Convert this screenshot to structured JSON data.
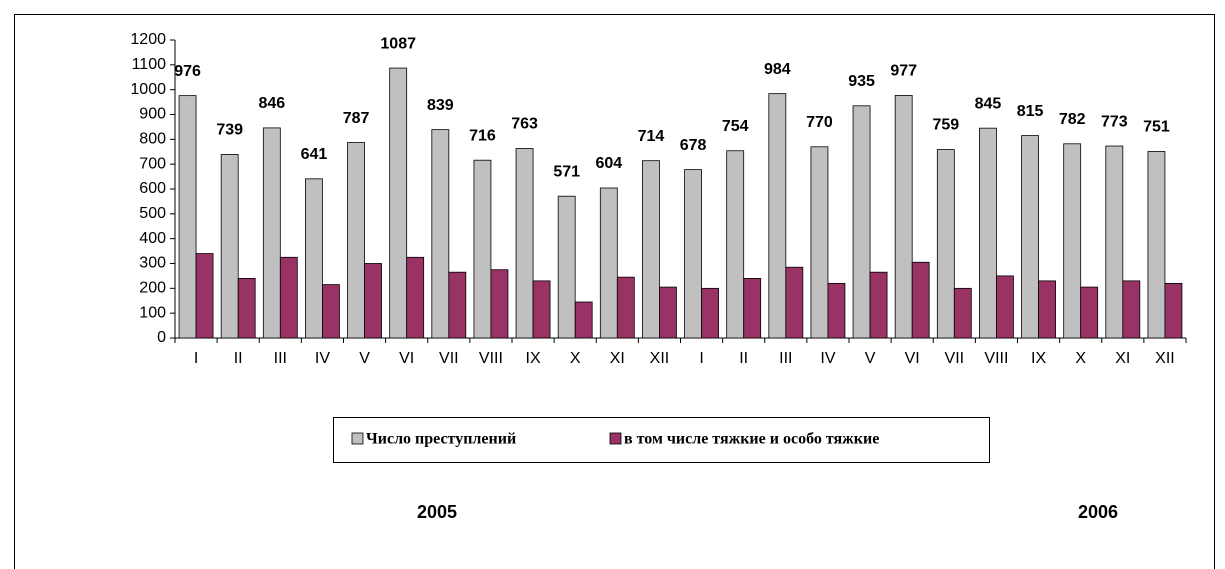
{
  "chart_data": {
    "type": "bar",
    "categories": [
      "I",
      "II",
      "III",
      "IV",
      "V",
      "VI",
      "VII",
      "VIII",
      "IX",
      "X",
      "XI",
      "XII",
      "I",
      "II",
      "III",
      "IV",
      "V",
      "VI",
      "VII",
      "VIII",
      "IX",
      "X",
      "XI",
      "XII"
    ],
    "series": [
      {
        "name": "Число преступлений",
        "color": "#c0c0c0",
        "values": [
          976,
          739,
          846,
          641,
          787,
          1087,
          839,
          716,
          763,
          571,
          604,
          714,
          678,
          754,
          984,
          770,
          935,
          977,
          759,
          845,
          815,
          782,
          773,
          751
        ]
      },
      {
        "name": "в том числе тяжкие и особо тяжкие",
        "color": "#993366",
        "values": [
          340,
          240,
          325,
          215,
          300,
          325,
          265,
          275,
          230,
          145,
          245,
          205,
          200,
          240,
          285,
          220,
          265,
          305,
          200,
          250,
          230,
          205,
          230,
          220
        ]
      }
    ],
    "ylim": [
      0,
      1200
    ],
    "yticks": [
      0,
      100,
      200,
      300,
      400,
      500,
      600,
      700,
      800,
      900,
      1000,
      1100,
      1200
    ],
    "year_labels": [
      "2005",
      "2006"
    ],
    "grid": false,
    "legend": "bottom"
  }
}
